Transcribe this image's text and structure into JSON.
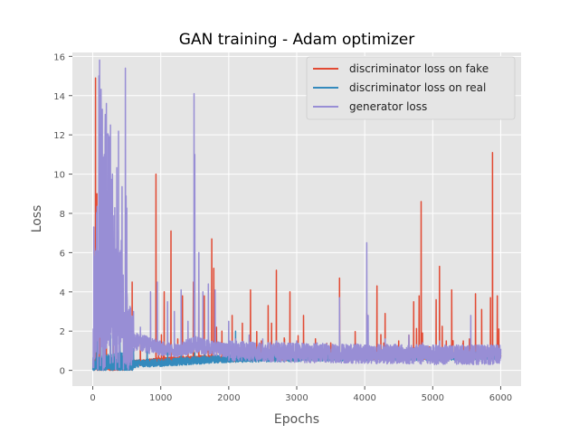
{
  "chart_data": {
    "type": "line",
    "title": "GAN training - Adam optimizer",
    "xlabel": "Epochs",
    "ylabel": "Loss",
    "xlim": [
      -300,
      6300
    ],
    "ylim": [
      -0.8,
      16.2
    ],
    "xticks": [
      0,
      1000,
      2000,
      3000,
      4000,
      5000,
      6000
    ],
    "yticks": [
      0,
      2,
      4,
      6,
      8,
      10,
      12,
      14,
      16
    ],
    "grid": true,
    "legend_position": "top-right",
    "x_max": 6000,
    "series": [
      {
        "name": "discriminator loss on fake",
        "color": "#E24A33",
        "baseline": [
          [
            0,
            0.2
          ],
          [
            400,
            0.3
          ],
          [
            1000,
            0.5
          ],
          [
            1500,
            0.6
          ],
          [
            2000,
            0.6
          ],
          [
            3000,
            0.65
          ],
          [
            4000,
            0.7
          ],
          [
            5000,
            0.7
          ],
          [
            6000,
            0.75
          ]
        ],
        "noise": 0.15,
        "spikes": [
          [
            20,
            4.9
          ],
          [
            40,
            14.9
          ],
          [
            60,
            9.0
          ],
          [
            100,
            5.0
          ],
          [
            150,
            7.5
          ],
          [
            200,
            6.0
          ],
          [
            300,
            3.5
          ],
          [
            500,
            3.0
          ],
          [
            580,
            4.5
          ],
          [
            700,
            1.8
          ],
          [
            800,
            1.5
          ],
          [
            930,
            10.0
          ],
          [
            1050,
            4.0
          ],
          [
            1150,
            7.1
          ],
          [
            1250,
            1.6
          ],
          [
            1320,
            3.8
          ],
          [
            1400,
            2.0
          ],
          [
            1480,
            4.5
          ],
          [
            1560,
            4.0
          ],
          [
            1640,
            3.8
          ],
          [
            1700,
            1.8
          ],
          [
            1750,
            6.7
          ],
          [
            1780,
            5.2
          ],
          [
            1820,
            2.2
          ],
          [
            1900,
            2.0
          ],
          [
            2050,
            2.8
          ],
          [
            2200,
            2.4
          ],
          [
            2320,
            4.1
          ],
          [
            2480,
            1.5
          ],
          [
            2580,
            3.3
          ],
          [
            2630,
            2.4
          ],
          [
            2700,
            5.1
          ],
          [
            2820,
            1.6
          ],
          [
            2900,
            4.0
          ],
          [
            3000,
            1.3
          ],
          [
            3100,
            2.8
          ],
          [
            3220,
            1.2
          ],
          [
            3350,
            1.0
          ],
          [
            3500,
            1.4
          ],
          [
            3630,
            4.7
          ],
          [
            3750,
            1.2
          ],
          [
            3900,
            1.3
          ],
          [
            4030,
            2.9
          ],
          [
            4180,
            4.3
          ],
          [
            4300,
            2.9
          ],
          [
            4500,
            1.5
          ],
          [
            4650,
            1.8
          ],
          [
            4720,
            3.5
          ],
          [
            4800,
            3.8
          ],
          [
            4830,
            8.6
          ],
          [
            4950,
            1.2
          ],
          [
            5050,
            3.6
          ],
          [
            5100,
            5.3
          ],
          [
            5200,
            1.5
          ],
          [
            5280,
            4.1
          ],
          [
            5350,
            1.0
          ],
          [
            5450,
            1.5
          ],
          [
            5540,
            1.6
          ],
          [
            5630,
            3.9
          ],
          [
            5720,
            3.1
          ],
          [
            5800,
            1.2
          ],
          [
            5850,
            3.7
          ],
          [
            5880,
            11.1
          ],
          [
            5950,
            3.8
          ]
        ]
      },
      {
        "name": "discriminator loss on real",
        "color": "#348ABD",
        "baseline": [
          [
            0,
            0.1
          ],
          [
            400,
            0.3
          ],
          [
            1000,
            0.4
          ],
          [
            1500,
            0.5
          ],
          [
            2000,
            0.6
          ],
          [
            3000,
            0.65
          ],
          [
            4000,
            0.7
          ],
          [
            5000,
            0.7
          ],
          [
            6000,
            0.75
          ]
        ],
        "noise": 0.2,
        "spikes": [
          [
            60,
            1.6
          ],
          [
            120,
            3.5
          ],
          [
            180,
            2.1
          ],
          [
            260,
            1.8
          ],
          [
            400,
            1.5
          ],
          [
            600,
            1.1
          ],
          [
            800,
            1.2
          ],
          [
            1100,
            1.0
          ],
          [
            1300,
            1.3
          ],
          [
            1500,
            0.9
          ],
          [
            1650,
            1.4
          ],
          [
            2100,
            2.0
          ],
          [
            2500,
            1.2
          ],
          [
            3200,
            1.0
          ],
          [
            3630,
            1.8
          ],
          [
            4030,
            1.9
          ],
          [
            4500,
            1.0
          ],
          [
            5050,
            1.1
          ],
          [
            5600,
            1.2
          ]
        ]
      },
      {
        "name": "generator loss",
        "color": "#988ED5",
        "baseline": [
          [
            0,
            0.3
          ],
          [
            100,
            5.0
          ],
          [
            200,
            4.0
          ],
          [
            300,
            2.5
          ],
          [
            450,
            2.2
          ],
          [
            600,
            1.5
          ],
          [
            900,
            1.2
          ],
          [
            1200,
            1.0
          ],
          [
            1500,
            1.3
          ],
          [
            1700,
            1.2
          ],
          [
            2000,
            1.0
          ],
          [
            3000,
            0.9
          ],
          [
            4000,
            0.85
          ],
          [
            5000,
            0.8
          ],
          [
            6000,
            0.8
          ]
        ],
        "noise": 0.5,
        "spikes": [
          [
            60,
            6.0
          ],
          [
            90,
            15.0
          ],
          [
            110,
            9.0
          ],
          [
            140,
            13.3
          ],
          [
            170,
            11.0
          ],
          [
            200,
            13.6
          ],
          [
            230,
            12.0
          ],
          [
            260,
            12.5
          ],
          [
            290,
            10.0
          ],
          [
            320,
            7.0
          ],
          [
            360,
            5.5
          ],
          [
            400,
            6.0
          ],
          [
            440,
            4.0
          ],
          [
            480,
            15.4
          ],
          [
            520,
            3.0
          ],
          [
            600,
            3.0
          ],
          [
            700,
            2.2
          ],
          [
            850,
            4.0
          ],
          [
            950,
            4.5
          ],
          [
            1100,
            3.5
          ],
          [
            1200,
            3.0
          ],
          [
            1300,
            4.1
          ],
          [
            1400,
            2.5
          ],
          [
            1490,
            14.1
          ],
          [
            1500,
            11.0
          ],
          [
            1560,
            6.0
          ],
          [
            1620,
            4.0
          ],
          [
            1700,
            4.4
          ],
          [
            1800,
            4.1
          ],
          [
            2000,
            2.5
          ],
          [
            2100,
            1.6
          ],
          [
            2300,
            1.8
          ],
          [
            2500,
            1.6
          ],
          [
            2700,
            1.5
          ],
          [
            3000,
            1.5
          ],
          [
            3300,
            1.4
          ],
          [
            3630,
            3.7
          ],
          [
            3800,
            1.3
          ],
          [
            4030,
            6.5
          ],
          [
            4050,
            2.8
          ],
          [
            4300,
            1.6
          ],
          [
            4650,
            1.8
          ],
          [
            4850,
            1.4
          ],
          [
            5100,
            1.5
          ],
          [
            5560,
            2.8
          ],
          [
            5800,
            1.2
          ]
        ]
      }
    ]
  }
}
